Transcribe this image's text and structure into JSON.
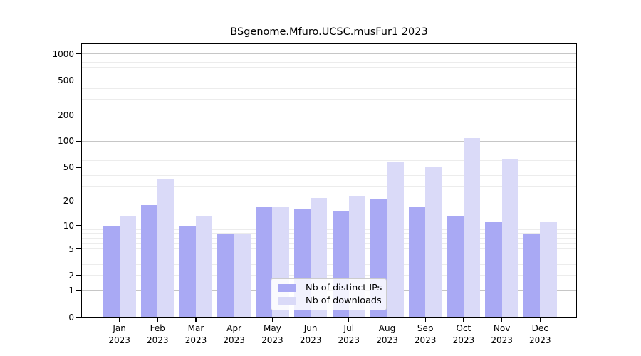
{
  "colors": {
    "ips_bar": "#a9a9f4",
    "downloads_bar": "#dadaf8",
    "grid_major": "#c6c6c6",
    "grid_minor": "#ececec",
    "axis": "#000000",
    "legend_border": "#cccccc"
  },
  "legend": {
    "items": [
      {
        "label": "Nb of distinct IPs",
        "color_key": "ips_bar"
      },
      {
        "label": "Nb of downloads",
        "color_key": "downloads_bar"
      }
    ]
  },
  "chart_data": {
    "type": "bar",
    "title": "BSgenome.Mfuro.UCSC.musFur1 2023",
    "xlabel": "",
    "ylabel": "",
    "y_scale": "log1p",
    "ylim": [
      0,
      1300
    ],
    "grid": true,
    "legend_position": "inside-bottom-center",
    "y_ticks": [
      0,
      1,
      2,
      5,
      10,
      20,
      50,
      100,
      200,
      500,
      1000
    ],
    "x_labels": [
      {
        "line1": "Jan",
        "line2": "2023"
      },
      {
        "line1": "Feb",
        "line2": "2023"
      },
      {
        "line1": "Mar",
        "line2": "2023"
      },
      {
        "line1": "Apr",
        "line2": "2023"
      },
      {
        "line1": "May",
        "line2": "2023"
      },
      {
        "line1": "Jun",
        "line2": "2023"
      },
      {
        "line1": "Jul",
        "line2": "2023"
      },
      {
        "line1": "Aug",
        "line2": "2023"
      },
      {
        "line1": "Sep",
        "line2": "2023"
      },
      {
        "line1": "Oct",
        "line2": "2023"
      },
      {
        "line1": "Nov",
        "line2": "2023"
      },
      {
        "line1": "Dec",
        "line2": "2023"
      }
    ],
    "series": [
      {
        "name": "Nb of distinct IPs",
        "values": [
          10,
          18,
          10,
          8,
          17,
          16,
          15,
          21,
          17,
          13,
          11,
          8
        ]
      },
      {
        "name": "Nb of downloads",
        "values": [
          13,
          36,
          13,
          8,
          17,
          22,
          23,
          57,
          51,
          108,
          63,
          11
        ]
      }
    ]
  }
}
